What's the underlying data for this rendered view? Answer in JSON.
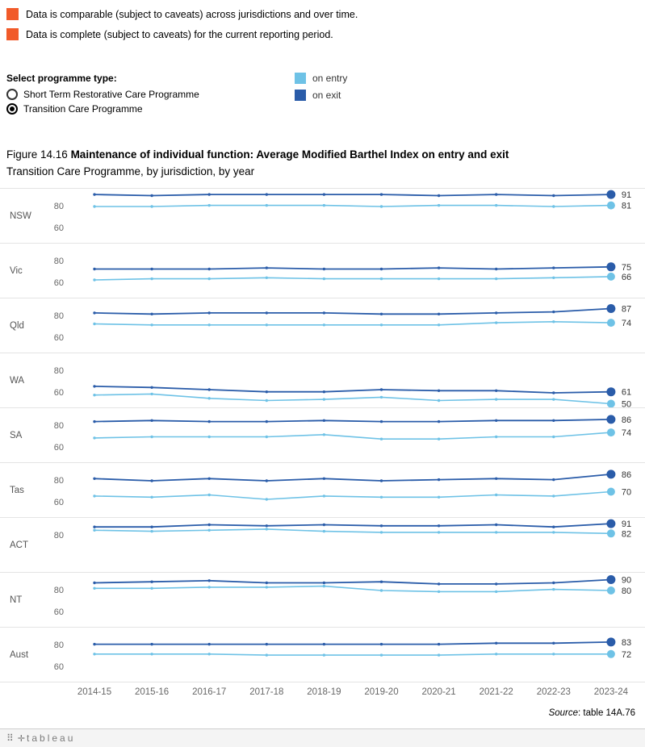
{
  "notes": [
    {
      "label": "Data is comparable (subject to caveats) across jurisdictions and over time.",
      "color": "#F15A29"
    },
    {
      "label": "Data is complete (subject to caveats) for the current reporting period.",
      "color": "#F15A29"
    }
  ],
  "controls": {
    "label": "Select programme type:",
    "options": [
      {
        "label": "Short Term Restorative Care Programme",
        "selected": false
      },
      {
        "label": "Transition Care Programme",
        "selected": true
      }
    ]
  },
  "series_legend": [
    {
      "label": "on entry",
      "color": "#6EC2E6"
    },
    {
      "label": "on exit",
      "color": "#2A5CA9"
    }
  ],
  "title": {
    "prefix": "Figure 14.16 ",
    "bold": "Maintenance of individual function: Average Modified Barthel Index on entry and exit",
    "line2": "Transition Care Programme, by jurisdiction, by year"
  },
  "source": {
    "prefix": "Source",
    "suffix": ": table 14A.76"
  },
  "footer": {
    "grid_icon": "⠿",
    "plus_icon": "✛",
    "logo": "tableau"
  },
  "chart_data": {
    "type": "line",
    "title": "Figure 14.16 Maintenance of individual function: Average Modified Barthel Index on entry and exit, Transition Care Programme, by jurisdiction, by year",
    "xlabel": "",
    "ylabel": "Average Modified Barthel Index",
    "grid": false,
    "legend_position": "top",
    "ylim": [
      45,
      99
    ],
    "x": [
      "2014-15",
      "2015-16",
      "2016-17",
      "2017-18",
      "2018-19",
      "2019-20",
      "2020-21",
      "2021-22",
      "2022-23",
      "2023-24"
    ],
    "series_names": [
      "on entry",
      "on exit"
    ],
    "colors": {
      "on_entry": "#6EC2E6",
      "on_exit": "#2A5CA9"
    },
    "panels": [
      {
        "jurisdiction": "NSW",
        "yticks": [
          80,
          60
        ],
        "on_entry": [
          80,
          80,
          81,
          81,
          81,
          80,
          81,
          81,
          80,
          81
        ],
        "on_exit": [
          91,
          90,
          91,
          91,
          91,
          91,
          90,
          91,
          90,
          91
        ]
      },
      {
        "jurisdiction": "Vic",
        "yticks": [
          80,
          60
        ],
        "on_entry": [
          63,
          64,
          64,
          65,
          64,
          64,
          64,
          64,
          65,
          66
        ],
        "on_exit": [
          73,
          73,
          73,
          74,
          73,
          73,
          74,
          73,
          74,
          75
        ]
      },
      {
        "jurisdiction": "Qld",
        "yticks": [
          80,
          60
        ],
        "on_entry": [
          73,
          72,
          72,
          72,
          72,
          72,
          72,
          74,
          75,
          74
        ],
        "on_exit": [
          83,
          82,
          83,
          83,
          83,
          82,
          82,
          83,
          84,
          87
        ]
      },
      {
        "jurisdiction": "WA",
        "yticks": [
          80,
          60
        ],
        "on_entry": [
          58,
          59,
          55,
          53,
          54,
          56,
          53,
          54,
          54,
          50
        ],
        "on_exit": [
          66,
          65,
          63,
          61,
          61,
          63,
          62,
          62,
          60,
          61
        ]
      },
      {
        "jurisdiction": "SA",
        "yticks": [
          80,
          60
        ],
        "on_entry": [
          69,
          70,
          70,
          70,
          72,
          68,
          68,
          70,
          70,
          74
        ],
        "on_exit": [
          84,
          85,
          84,
          84,
          85,
          84,
          84,
          85,
          85,
          86
        ]
      },
      {
        "jurisdiction": "Tas",
        "yticks": [
          80,
          60
        ],
        "on_entry": [
          66,
          65,
          67,
          63,
          66,
          65,
          65,
          67,
          66,
          70
        ],
        "on_exit": [
          82,
          80,
          82,
          80,
          82,
          80,
          81,
          82,
          81,
          86
        ]
      },
      {
        "jurisdiction": "ACT",
        "yticks": [
          80
        ],
        "on_entry": [
          85,
          84,
          85,
          86,
          84,
          83,
          83,
          83,
          83,
          82
        ],
        "on_exit": [
          88,
          88,
          90,
          89,
          90,
          89,
          89,
          90,
          88,
          91
        ]
      },
      {
        "jurisdiction": "NT",
        "yticks": [
          80,
          60
        ],
        "on_entry": [
          82,
          82,
          83,
          83,
          84,
          80,
          79,
          79,
          81,
          80
        ],
        "on_exit": [
          87,
          88,
          89,
          87,
          87,
          88,
          86,
          86,
          87,
          90
        ]
      },
      {
        "jurisdiction": "Aust",
        "yticks": [
          80,
          60
        ],
        "on_entry": [
          72,
          72,
          72,
          71,
          71,
          71,
          71,
          72,
          72,
          72
        ],
        "on_exit": [
          81,
          81,
          81,
          81,
          81,
          81,
          81,
          82,
          82,
          83
        ]
      }
    ]
  }
}
